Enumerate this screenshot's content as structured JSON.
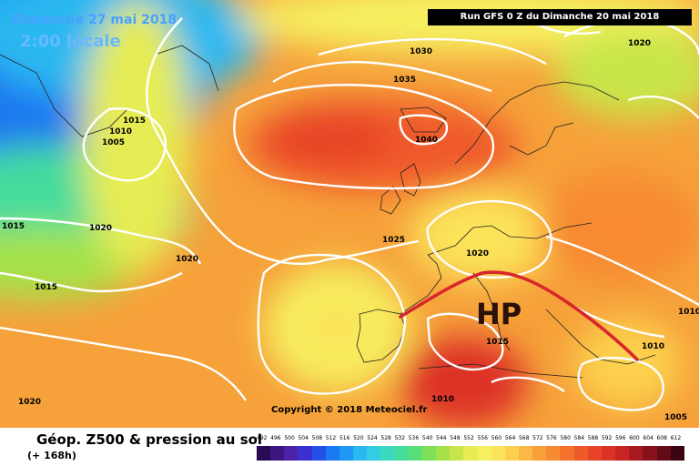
{
  "header": {
    "date_label": "Dimanche 27 mai 2018",
    "time_label": "2:00 locale",
    "run_label": "Run GFS 0 Z du Dimanche 20 mai 2018"
  },
  "map": {
    "isobar_labels": [
      "1030",
      "1020",
      "1015",
      "1010",
      "1005",
      "1035",
      "1040",
      "1020",
      "1015",
      "1020",
      "1015",
      "1025",
      "1020",
      "1010",
      "1015",
      "1010",
      "1010",
      "1020",
      "1005"
    ],
    "pressure_center": "HP",
    "front_color": "#d8262a",
    "isobar_color": "#ffffff"
  },
  "footer": {
    "copyright": "Copyright © 2018 Meteociel.fr",
    "title": "Géop. Z500 & pression au sol",
    "forecast_hours": "(+ 168h)"
  },
  "legend": {
    "labels": [
      "492",
      "496",
      "500",
      "504",
      "508",
      "512",
      "516",
      "520",
      "524",
      "528",
      "532",
      "536",
      "540",
      "544",
      "548",
      "552",
      "556",
      "560",
      "564",
      "568",
      "572",
      "576",
      "580",
      "584",
      "588",
      "592",
      "596",
      "600",
      "604",
      "608",
      "612"
    ],
    "colors": [
      "#2a0a55",
      "#3d1580",
      "#4b22a8",
      "#3a2fd0",
      "#2350e8",
      "#1a78f0",
      "#1f98f5",
      "#2ab8f0",
      "#33cce0",
      "#3cd8c0",
      "#45dc9c",
      "#5ade78",
      "#7ee05a",
      "#a5e24a",
      "#c8e64a",
      "#e6ec52",
      "#f6f060",
      "#fbe45a",
      "#fcd04e",
      "#fbb844",
      "#f9a03a",
      "#f78a32",
      "#f4722c",
      "#ef5a2a",
      "#e84528",
      "#dd3326",
      "#c82422",
      "#a81a20",
      "#88121c",
      "#640a16",
      "#3c0410"
    ]
  }
}
